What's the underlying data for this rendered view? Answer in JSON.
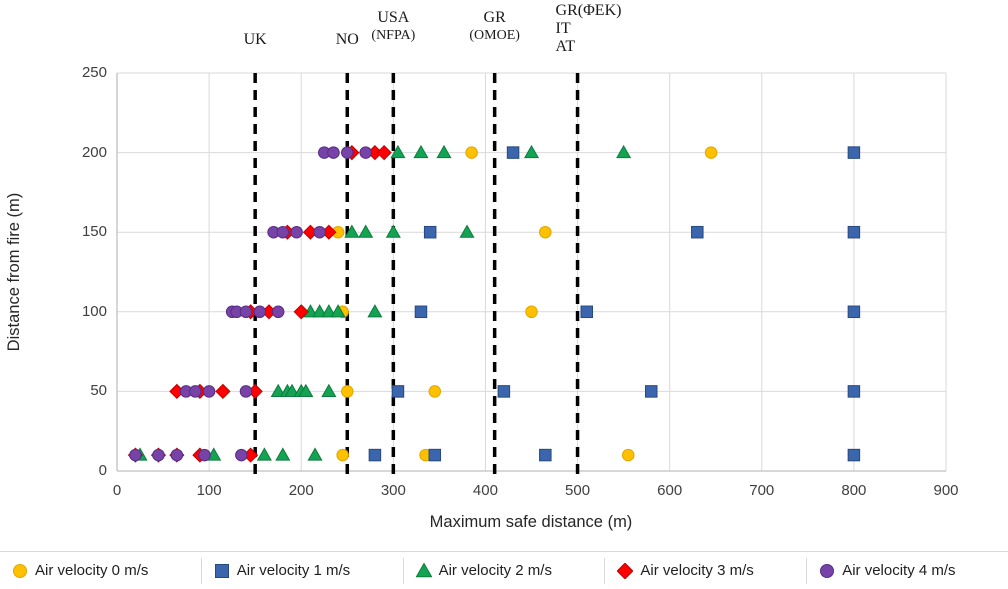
{
  "chart_data": {
    "type": "scatter",
    "title": "",
    "xlabel": "Maximum safe distance (m)",
    "ylabel": "Distance from fire (m)",
    "xlim": [
      0,
      900
    ],
    "ylim": [
      0,
      250
    ],
    "x_ticks": [
      0,
      100,
      200,
      300,
      400,
      500,
      600,
      700,
      800,
      900
    ],
    "y_ticks": [
      0,
      50,
      100,
      150,
      200,
      250
    ],
    "grid": true,
    "legend_position": "bottom",
    "reference_lines": [
      {
        "x": 150,
        "label_lines": [
          "UK"
        ],
        "align": "center"
      },
      {
        "x": 250,
        "label_lines": [
          "NO"
        ],
        "align": "center"
      },
      {
        "x": 300,
        "label_lines": [
          "USA",
          "(NFPA)"
        ],
        "align": "center"
      },
      {
        "x": 410,
        "label_lines": [
          "GR",
          "(OMOE)"
        ],
        "align": "center"
      },
      {
        "x": 500,
        "label_lines": [
          "GR(ΦΕΚ)",
          "IT",
          "AT"
        ],
        "align": "left"
      }
    ],
    "series": [
      {
        "name": "Air velocity 0 m/s",
        "marker": "circle",
        "color": "#FFC000",
        "border": "#DFA700",
        "points": [
          [
            245,
            10
          ],
          [
            335,
            10
          ],
          [
            555,
            10
          ],
          [
            250,
            50
          ],
          [
            345,
            50
          ],
          [
            245,
            100
          ],
          [
            450,
            100
          ],
          [
            240,
            150
          ],
          [
            465,
            150
          ],
          [
            385,
            200
          ],
          [
            645,
            200
          ]
        ]
      },
      {
        "name": "Air velocity 1 m/s",
        "marker": "square",
        "color": "#3B66AE",
        "border": "#27497E",
        "points": [
          [
            280,
            10
          ],
          [
            345,
            10
          ],
          [
            465,
            10
          ],
          [
            800,
            10
          ],
          [
            305,
            50
          ],
          [
            420,
            50
          ],
          [
            580,
            50
          ],
          [
            800,
            50
          ],
          [
            330,
            100
          ],
          [
            510,
            100
          ],
          [
            800,
            100
          ],
          [
            340,
            150
          ],
          [
            630,
            150
          ],
          [
            800,
            150
          ],
          [
            430,
            200
          ],
          [
            800,
            200
          ]
        ]
      },
      {
        "name": "Air velocity 2 m/s",
        "marker": "triangle",
        "color": "#12A452",
        "border": "#0D7C3E",
        "points": [
          [
            25,
            10
          ],
          [
            105,
            10
          ],
          [
            160,
            10
          ],
          [
            180,
            10
          ],
          [
            215,
            10
          ],
          [
            175,
            50
          ],
          [
            185,
            50
          ],
          [
            190,
            50
          ],
          [
            200,
            50
          ],
          [
            205,
            50
          ],
          [
            230,
            50
          ],
          [
            210,
            100
          ],
          [
            220,
            100
          ],
          [
            230,
            100
          ],
          [
            240,
            100
          ],
          [
            280,
            100
          ],
          [
            255,
            150
          ],
          [
            270,
            150
          ],
          [
            300,
            150
          ],
          [
            380,
            150
          ],
          [
            305,
            200
          ],
          [
            330,
            200
          ],
          [
            355,
            200
          ],
          [
            450,
            200
          ],
          [
            550,
            200
          ]
        ]
      },
      {
        "name": "Air velocity 3 m/s",
        "marker": "diamond",
        "color": "#FF0000",
        "border": "#BF0000",
        "points": [
          [
            20,
            10
          ],
          [
            45,
            10
          ],
          [
            65,
            10
          ],
          [
            90,
            10
          ],
          [
            145,
            10
          ],
          [
            65,
            50
          ],
          [
            90,
            50
          ],
          [
            115,
            50
          ],
          [
            150,
            50
          ],
          [
            145,
            100
          ],
          [
            165,
            100
          ],
          [
            200,
            100
          ],
          [
            185,
            150
          ],
          [
            210,
            150
          ],
          [
            230,
            150
          ],
          [
            255,
            200
          ],
          [
            280,
            200
          ],
          [
            290,
            200
          ]
        ]
      },
      {
        "name": "Air velocity 4 m/s",
        "marker": "circle",
        "color": "#7743A6",
        "border": "#582D84",
        "points": [
          [
            20,
            10
          ],
          [
            45,
            10
          ],
          [
            65,
            10
          ],
          [
            95,
            10
          ],
          [
            135,
            10
          ],
          [
            75,
            50
          ],
          [
            85,
            50
          ],
          [
            100,
            50
          ],
          [
            140,
            50
          ],
          [
            125,
            100
          ],
          [
            130,
            100
          ],
          [
            140,
            100
          ],
          [
            155,
            100
          ],
          [
            175,
            100
          ],
          [
            170,
            150
          ],
          [
            180,
            150
          ],
          [
            195,
            150
          ],
          [
            220,
            150
          ],
          [
            225,
            200
          ],
          [
            235,
            200
          ],
          [
            250,
            200
          ],
          [
            270,
            200
          ]
        ]
      }
    ],
    "colors": {
      "grid": "#D9D9D9",
      "axis": "#BFBFBF",
      "reference_line": "#000000"
    }
  }
}
